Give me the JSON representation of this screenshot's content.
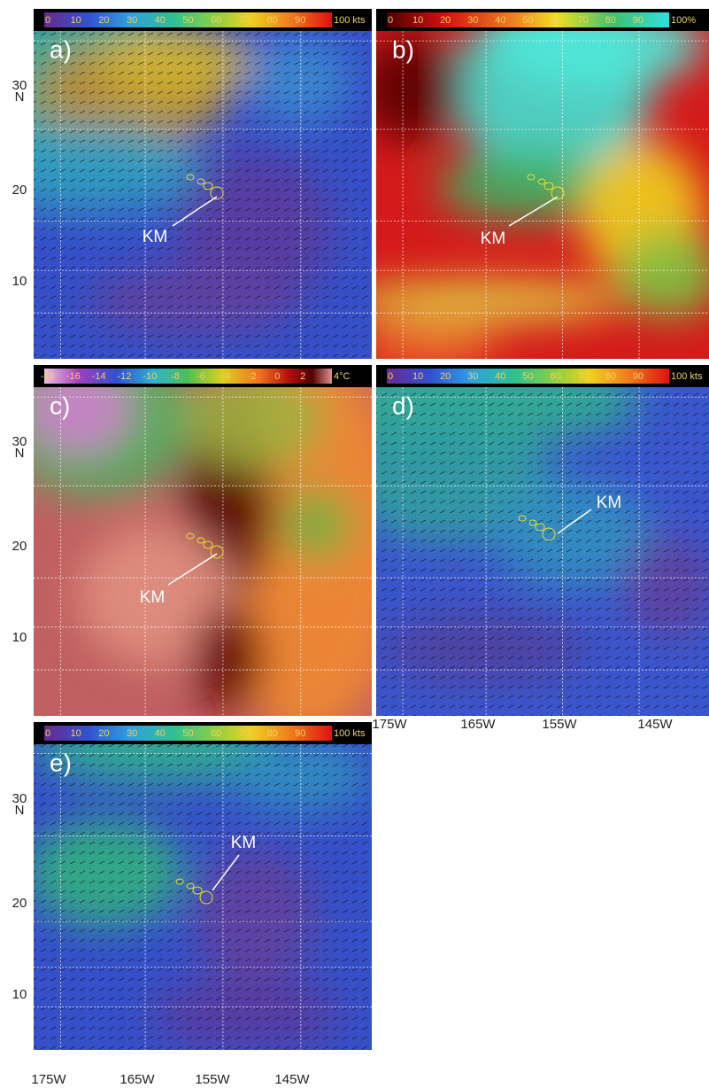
{
  "panels": [
    {
      "label": "a)",
      "colorbar": [
        "0",
        "10",
        "20",
        "30",
        "40",
        "50",
        "60",
        "70",
        "80",
        "90",
        "100 kts"
      ],
      "annotation": "KM",
      "lat_labels": [
        "30",
        "N",
        "20",
        "10"
      ]
    },
    {
      "label": "b)",
      "colorbar": [
        "0",
        "10",
        "20",
        "30",
        "40",
        "50",
        "60",
        "70",
        "80",
        "90",
        "100%"
      ],
      "annotation": "KM"
    },
    {
      "label": "c)",
      "colorbar": [
        "-18",
        "-16",
        "-14",
        "-12",
        "-10",
        "-8",
        "-6",
        "-4",
        "-2",
        "0",
        "2",
        "4°C"
      ],
      "annotation": "KM",
      "lat_labels": [
        "30",
        "N",
        "20",
        "10"
      ]
    },
    {
      "label": "d)",
      "colorbar": [
        "0",
        "10",
        "20",
        "30",
        "40",
        "50",
        "60",
        "70",
        "80",
        "90",
        "100 kts"
      ],
      "annotation": "KM",
      "lon_labels": [
        "175W",
        "165W",
        "155W",
        "145W"
      ]
    },
    {
      "label": "e)",
      "colorbar": [
        "0",
        "10",
        "20",
        "30",
        "40",
        "50",
        "60",
        "70",
        "80",
        "90",
        "100 kts"
      ],
      "annotation": "KM",
      "lat_labels": [
        "30",
        "N",
        "20",
        "10"
      ],
      "lon_labels": [
        "175W",
        "165W",
        "155W",
        "145W"
      ]
    }
  ]
}
